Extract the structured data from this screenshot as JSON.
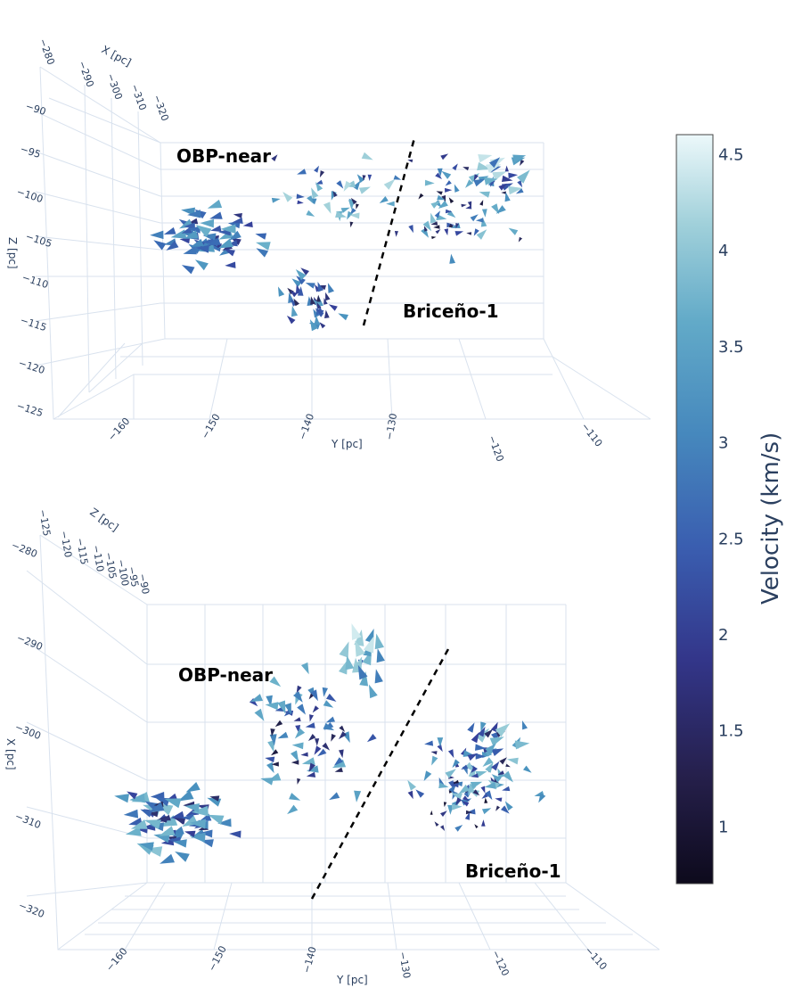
{
  "chart_data": [
    {
      "type": "scatter",
      "title": "",
      "view": "Y-Z projection (3D cone plot)",
      "x_axis": {
        "label": "X [pc]",
        "ticks": [
          "−280",
          "−290",
          "−300",
          "−310",
          "−320"
        ]
      },
      "y_axis": {
        "label": "Y [pc]",
        "ticks": [
          "−160",
          "−150",
          "−140",
          "−130",
          "−120",
          "−110"
        ]
      },
      "z_axis": {
        "label": "Z [pc]",
        "ticks": [
          "−90",
          "−95",
          "−100",
          "−105",
          "−110",
          "−115",
          "−120",
          "−125"
        ]
      },
      "annotations": [
        "OBP-near",
        "Briceño-1"
      ],
      "groups": [
        {
          "name": "OBP-near",
          "y_range": [
            -158,
            -133
          ],
          "z_range": [
            -114,
            -96
          ],
          "velocity_range": [
            1,
            4.6
          ]
        },
        {
          "name": "Briceño-1",
          "y_range": [
            -130,
            -112
          ],
          "z_range": [
            -110,
            -96
          ],
          "velocity_range": [
            1,
            4.6
          ]
        }
      ]
    },
    {
      "type": "scatter",
      "title": "",
      "view": "Y-X projection (3D cone plot)",
      "x_axis": {
        "label": "X [pc]",
        "ticks": [
          "−280",
          "−290",
          "−300",
          "−310",
          "−320"
        ]
      },
      "y_axis": {
        "label": "Y [pc]",
        "ticks": [
          "−160",
          "−150",
          "−140",
          "−130",
          "−120",
          "−110"
        ]
      },
      "z_axis": {
        "label": "Z [pc]",
        "ticks": [
          "−125",
          "−120",
          "−115",
          "−110",
          "−105",
          "−100",
          "−95",
          "−90"
        ]
      },
      "annotations": [
        "OBP-near",
        "Briceño-1"
      ],
      "groups": [
        {
          "name": "OBP-near",
          "y_range": [
            -160,
            -133
          ],
          "x_range": [
            -316,
            -286
          ],
          "velocity_range": [
            1,
            4.6
          ]
        },
        {
          "name": "Briceño-1",
          "y_range": [
            -130,
            -110
          ],
          "x_range": [
            -316,
            -298
          ],
          "velocity_range": [
            1,
            4.6
          ]
        }
      ]
    }
  ],
  "colorbar": {
    "title": "Velocity (km/s)",
    "range": [
      0.7,
      4.6
    ],
    "ticks": [
      "1",
      "1.5",
      "2",
      "2.5",
      "3",
      "3.5",
      "4",
      "4.5"
    ],
    "tick_values": [
      1,
      1.5,
      2,
      2.5,
      3,
      3.5,
      4,
      4.5
    ],
    "colorscale": [
      "#0d0a1c",
      "#2a2b5c",
      "#35409a",
      "#3a6bb5",
      "#4a93bf",
      "#6eb3cb",
      "#a5d3db",
      "#e8f7f9"
    ]
  }
}
